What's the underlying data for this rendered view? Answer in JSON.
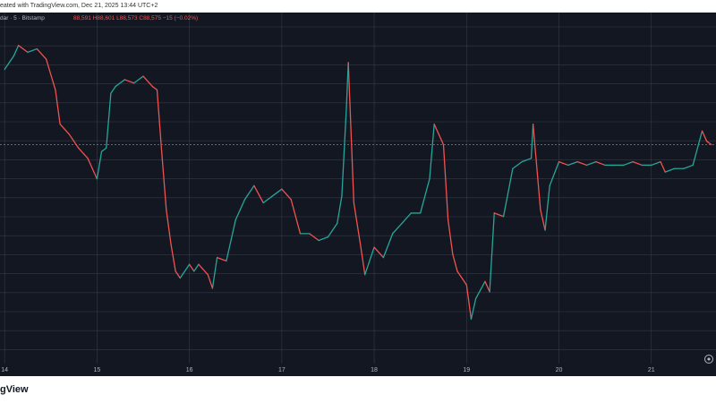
{
  "header": {
    "published_text": "eated with TradingView.com, Dec 21, 2025 13:44 UTC+2"
  },
  "legend": {
    "symbol_text": "dar · 5 · Bitstamp",
    "values_text": "88,591  H88,601  L88,573  C88,575  −15 (−0.02%)"
  },
  "brand": {
    "name": "gView"
  },
  "colors": {
    "background": "#131722",
    "grid": "#363a45",
    "up": "#26a69a",
    "down": "#ef5350",
    "axis_text": "#b2b5be",
    "current_line": "#ef5350"
  },
  "chart_data": {
    "type": "line",
    "title": "",
    "xlabel": "",
    "ylabel": "",
    "x_ticks": [
      "14",
      "15",
      "16",
      "17",
      "18",
      "19",
      "20",
      "21"
    ],
    "y_ticks": [],
    "ylim": [
      0,
      100
    ],
    "last_value": 88575,
    "series": [
      {
        "values": [
          [
            14.0,
            86
          ],
          [
            14.1,
            90
          ],
          [
            14.15,
            93
          ],
          [
            14.25,
            91
          ],
          [
            14.35,
            92
          ],
          [
            14.45,
            89
          ],
          [
            14.55,
            80
          ],
          [
            14.6,
            70
          ],
          [
            14.7,
            67
          ],
          [
            14.8,
            63
          ],
          [
            14.9,
            60
          ],
          [
            15.0,
            54
          ],
          [
            15.05,
            62
          ],
          [
            15.1,
            63
          ],
          [
            15.15,
            79
          ],
          [
            15.2,
            81
          ],
          [
            15.3,
            83
          ],
          [
            15.4,
            82
          ],
          [
            15.5,
            84
          ],
          [
            15.6,
            81
          ],
          [
            15.65,
            80
          ],
          [
            15.7,
            62
          ],
          [
            15.75,
            45
          ],
          [
            15.8,
            35
          ],
          [
            15.85,
            27
          ],
          [
            15.9,
            25
          ],
          [
            16.0,
            29
          ],
          [
            16.05,
            27
          ],
          [
            16.1,
            29
          ],
          [
            16.2,
            26
          ],
          [
            16.25,
            22
          ],
          [
            16.3,
            31
          ],
          [
            16.4,
            30
          ],
          [
            16.5,
            42
          ],
          [
            16.6,
            48
          ],
          [
            16.7,
            52
          ],
          [
            16.8,
            47
          ],
          [
            16.9,
            49
          ],
          [
            17.0,
            51
          ],
          [
            17.1,
            48
          ],
          [
            17.2,
            38
          ],
          [
            17.3,
            38
          ],
          [
            17.4,
            36
          ],
          [
            17.5,
            37
          ],
          [
            17.6,
            41
          ],
          [
            17.65,
            49
          ],
          [
            17.7,
            75
          ],
          [
            17.72,
            88
          ],
          [
            17.78,
            47
          ],
          [
            17.85,
            35
          ],
          [
            17.9,
            26
          ],
          [
            18.0,
            34
          ],
          [
            18.1,
            31
          ],
          [
            18.2,
            38
          ],
          [
            18.3,
            41
          ],
          [
            18.4,
            44
          ],
          [
            18.5,
            44
          ],
          [
            18.6,
            54
          ],
          [
            18.65,
            70
          ],
          [
            18.7,
            67
          ],
          [
            18.75,
            64
          ],
          [
            18.8,
            42
          ],
          [
            18.85,
            32
          ],
          [
            18.9,
            27
          ],
          [
            18.95,
            25
          ],
          [
            19.0,
            23
          ],
          [
            19.05,
            13
          ],
          [
            19.1,
            19
          ],
          [
            19.2,
            24
          ],
          [
            19.25,
            21
          ],
          [
            19.3,
            44
          ],
          [
            19.4,
            43
          ],
          [
            19.5,
            57
          ],
          [
            19.6,
            59
          ],
          [
            19.7,
            60
          ],
          [
            19.72,
            70
          ],
          [
            19.8,
            45
          ],
          [
            19.85,
            39
          ],
          [
            19.9,
            52
          ],
          [
            20.0,
            59
          ],
          [
            20.1,
            58
          ],
          [
            20.2,
            59
          ],
          [
            20.3,
            58
          ],
          [
            20.4,
            59
          ],
          [
            20.5,
            58
          ],
          [
            20.6,
            58
          ],
          [
            20.7,
            58
          ],
          [
            20.8,
            59
          ],
          [
            20.9,
            58
          ],
          [
            21.0,
            58
          ],
          [
            21.1,
            59
          ],
          [
            21.15,
            56
          ],
          [
            21.25,
            57
          ],
          [
            21.35,
            57
          ],
          [
            21.45,
            58
          ],
          [
            21.55,
            68
          ],
          [
            21.6,
            65
          ],
          [
            21.65,
            64
          ]
        ]
      }
    ]
  }
}
